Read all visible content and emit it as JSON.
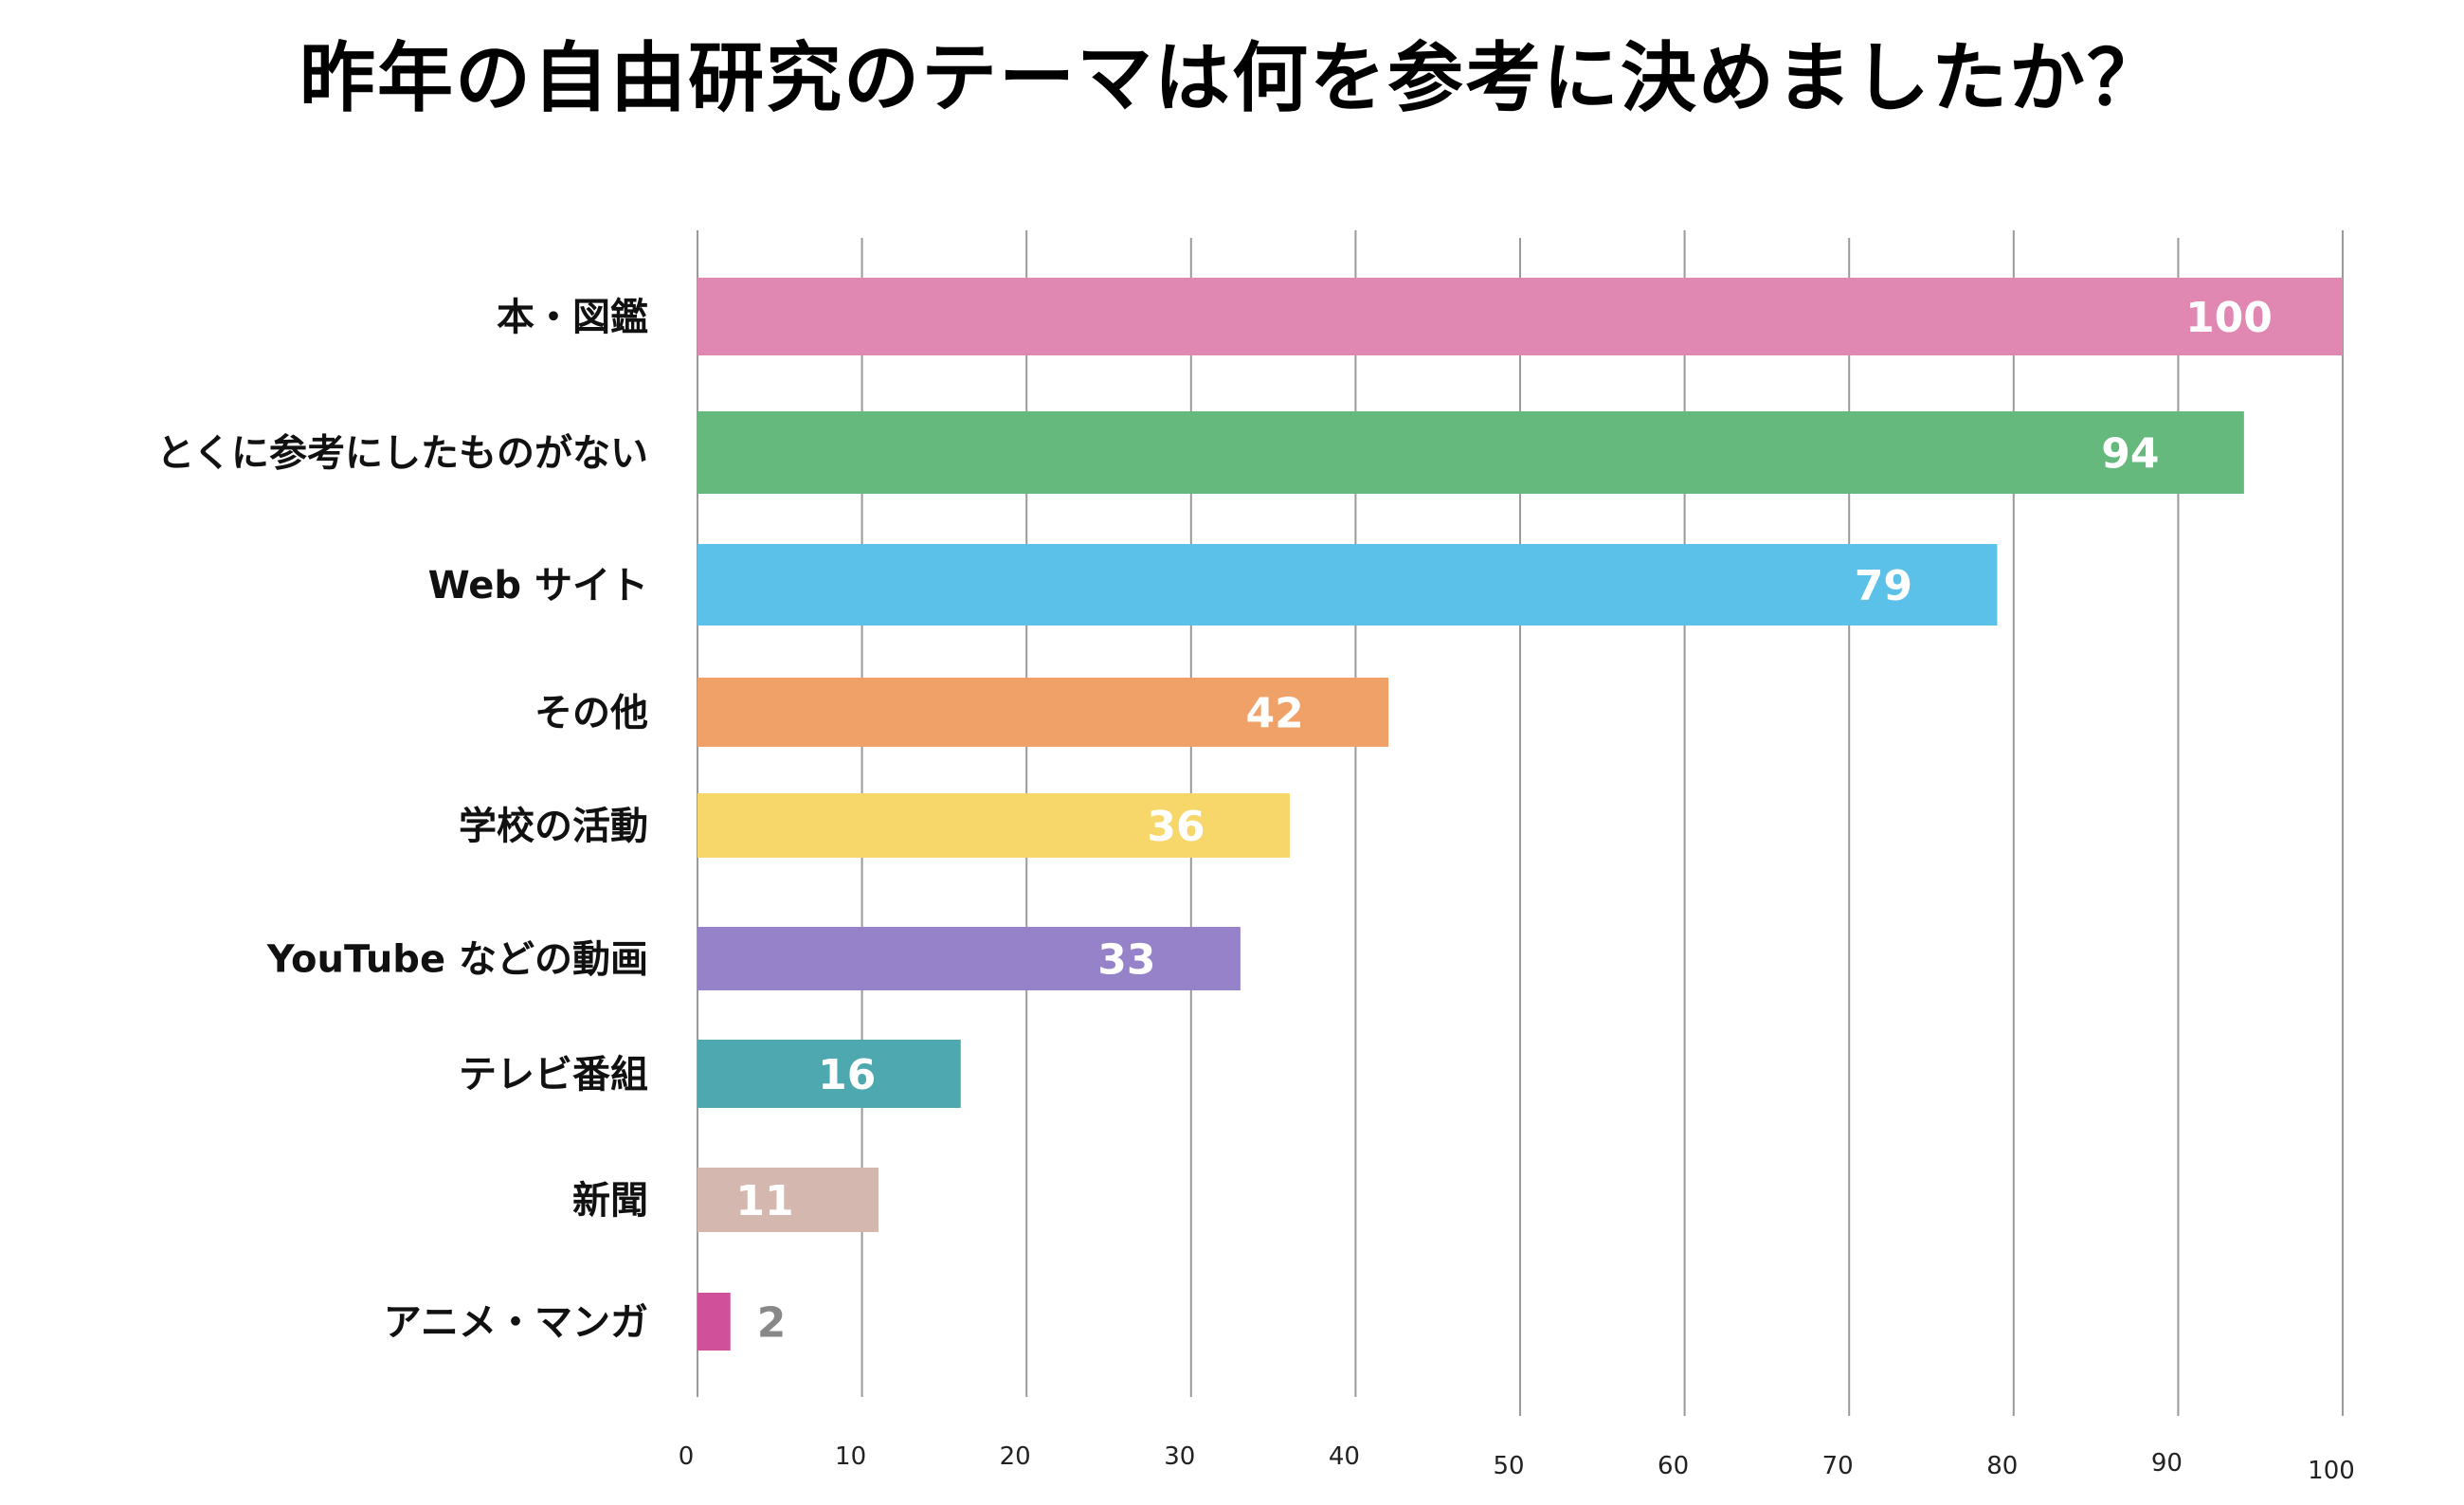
{
  "chart_data": {
    "type": "bar",
    "orientation": "horizontal",
    "title": "昨年の自由研究のテーマは何を参考に決めましたか？",
    "categories": [
      "本・図鑑",
      "とくに参考にしたものがない",
      "Web サイト",
      "その他",
      "学校の活動",
      "YouTube などの動画",
      "テレビ番組",
      "新聞",
      "アニメ・マンガ"
    ],
    "values": [
      100,
      94,
      79,
      42,
      36,
      33,
      16,
      11,
      2
    ],
    "colors": [
      "#E088B2",
      "#66B97C",
      "#5CC1E8",
      "#F0A167",
      "#F7D76A",
      "#9682C8",
      "#4EA8B0",
      "#D4B8B0",
      "#D0509A"
    ],
    "xlim": [
      0,
      100
    ],
    "xticks": [
      "0",
      "10",
      "20",
      "30",
      "40",
      "50",
      "60",
      "70",
      "80",
      "90",
      "100"
    ],
    "grid": true,
    "xlabel": "",
    "ylabel": ""
  }
}
